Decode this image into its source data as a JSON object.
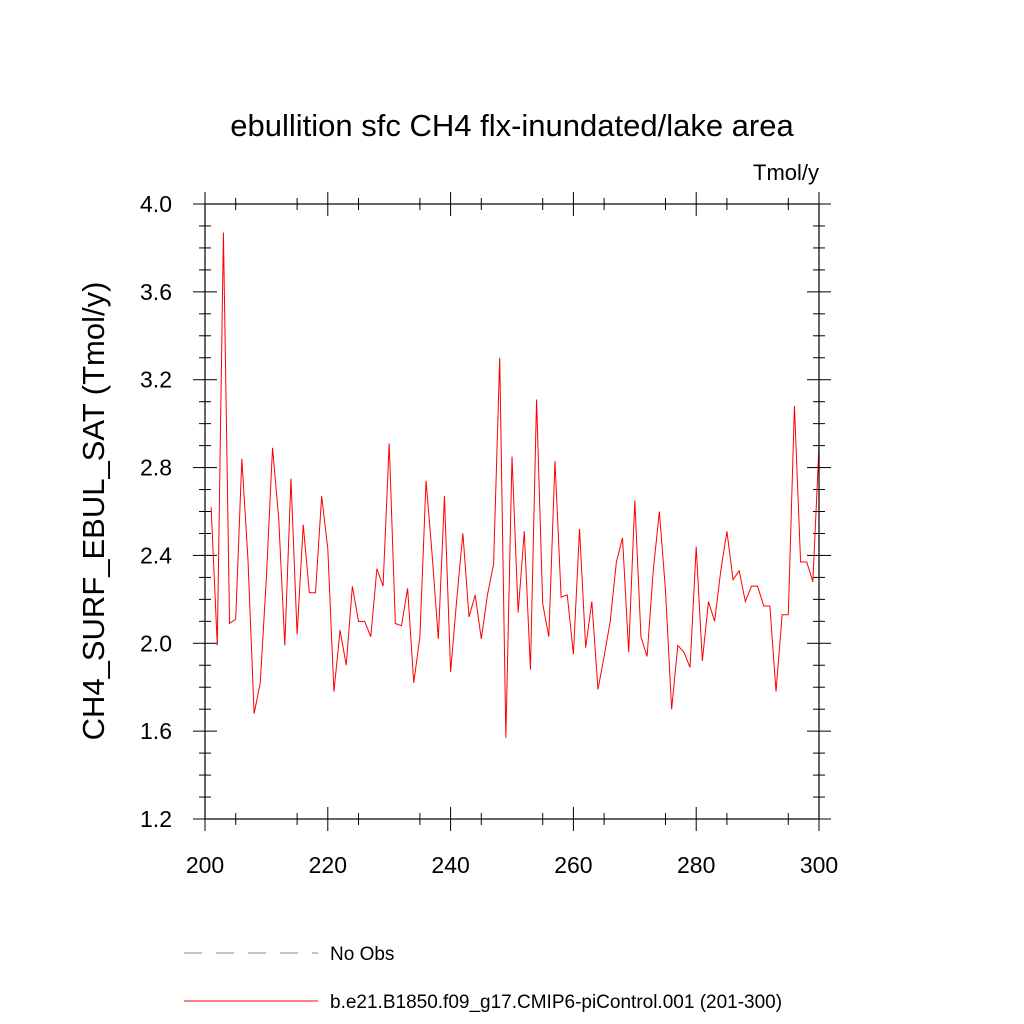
{
  "chart_data": {
    "type": "line",
    "title": "ebullition sfc CH4 flx-inundated/lake area",
    "units": "Tmol/y",
    "ylabel": "CH4_SURF_EBUL_SAT  (Tmol/y)",
    "xlabel": "",
    "xlim": [
      200,
      300
    ],
    "ylim": [
      1.2,
      4.0
    ],
    "x_ticks": [
      "200",
      "220",
      "240",
      "260",
      "280",
      "300"
    ],
    "y_ticks": [
      "1.2",
      "1.6",
      "2.0",
      "2.4",
      "2.8",
      "3.2",
      "3.6",
      "4.0"
    ],
    "grid": false,
    "legend_position": "bottom",
    "legend": [
      {
        "label": "No Obs",
        "style": "dashed",
        "color": "#8080c0"
      },
      {
        "label": "b.e21.B1850.f09_g17.CMIP6-piControl.001 (201-300)",
        "style": "solid",
        "color": "#ff0000"
      }
    ],
    "series": [
      {
        "name": "b.e21.B1850.f09_g17.CMIP6-piControl.001 (201-300)",
        "color": "#ff0000",
        "x": [
          201,
          202,
          203,
          204,
          205,
          206,
          207,
          208,
          209,
          210,
          211,
          212,
          213,
          214,
          215,
          216,
          217,
          218,
          219,
          220,
          221,
          222,
          223,
          224,
          225,
          226,
          227,
          228,
          229,
          230,
          231,
          232,
          233,
          234,
          235,
          236,
          237,
          238,
          239,
          240,
          241,
          242,
          243,
          244,
          245,
          246,
          247,
          248,
          249,
          250,
          251,
          252,
          253,
          254,
          255,
          256,
          257,
          258,
          259,
          260,
          261,
          262,
          263,
          264,
          265,
          266,
          267,
          268,
          269,
          270,
          271,
          272,
          273,
          274,
          275,
          276,
          277,
          278,
          279,
          280,
          281,
          282,
          283,
          284,
          285,
          286,
          287,
          288,
          289,
          290,
          291,
          292,
          293,
          294,
          295,
          296,
          297,
          298,
          299,
          300
        ],
        "values": [
          2.62,
          1.99,
          3.87,
          2.09,
          2.11,
          2.84,
          2.38,
          1.68,
          1.82,
          2.3,
          2.89,
          2.57,
          1.99,
          2.75,
          2.04,
          2.54,
          2.23,
          2.23,
          2.67,
          2.43,
          1.78,
          2.06,
          1.9,
          2.26,
          2.1,
          2.1,
          2.03,
          2.34,
          2.26,
          2.91,
          2.09,
          2.08,
          2.25,
          1.82,
          2.03,
          2.74,
          2.4,
          2.02,
          2.67,
          1.87,
          2.2,
          2.5,
          2.12,
          2.22,
          2.02,
          2.22,
          2.36,
          3.3,
          1.57,
          2.85,
          2.14,
          2.51,
          1.88,
          3.11,
          2.18,
          2.03,
          2.83,
          2.21,
          2.22,
          1.95,
          2.52,
          1.98,
          2.19,
          1.79,
          1.94,
          2.1,
          2.37,
          2.48,
          1.96,
          2.65,
          2.03,
          1.94,
          2.33,
          2.6,
          2.24,
          1.7,
          1.99,
          1.96,
          1.89,
          2.44,
          1.92,
          2.19,
          2.1,
          2.33,
          2.51,
          2.29,
          2.33,
          2.19,
          2.26,
          2.26,
          2.17,
          2.17,
          1.78,
          2.13,
          2.13,
          3.08,
          2.37,
          2.37,
          2.28,
          2.9
        ]
      }
    ]
  }
}
